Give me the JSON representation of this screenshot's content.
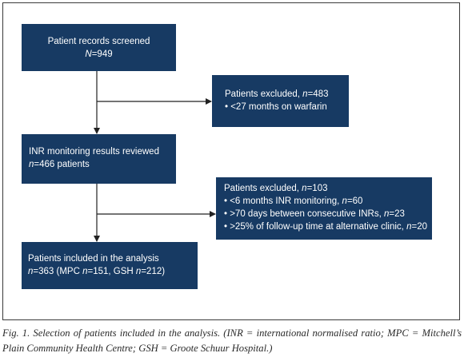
{
  "flow": {
    "screened": {
      "title": "Patient records screened",
      "n_label": "N",
      "n_value": "=949"
    },
    "excluded1": {
      "title": "Patients excluded, ",
      "n_label": "n",
      "n_value": "=483",
      "bullets": [
        "• <27 months on warfarin"
      ]
    },
    "reviewed": {
      "title": "INR monitoring results reviewed",
      "n_label": "n",
      "n_value": "=466 patients"
    },
    "excluded2": {
      "title": "Patients excluded, ",
      "n_label": "n",
      "n_value": "=103",
      "b1_text": "• <6 months INR monitoring, ",
      "b1_n": "n",
      "b1_val": "=60",
      "b2_text": "• >70 days between consecutive INRs, ",
      "b2_n": "n",
      "b2_val": "=23",
      "b3_text": "• >25% of follow-up time at alternative clinic, ",
      "b3_n": "n",
      "b3_val": "=20"
    },
    "included": {
      "title": "Patients included in the analysis",
      "l2_n": "n",
      "l2_a": "=363 (MPC ",
      "l2_n2": "n",
      "l2_b": "=151, GSH ",
      "l2_n3": "n",
      "l2_c": "=212)"
    }
  },
  "caption": "Fig. 1. Selection of patients included in the analysis. (INR = international normalised ratio; MPC = Mitchell’s Plain Community Health Centre; GSH = Groote Schuur Hospital.)",
  "colors": {
    "box_fill": "#173a63",
    "text": "#ffffff",
    "connector": "#222222"
  }
}
